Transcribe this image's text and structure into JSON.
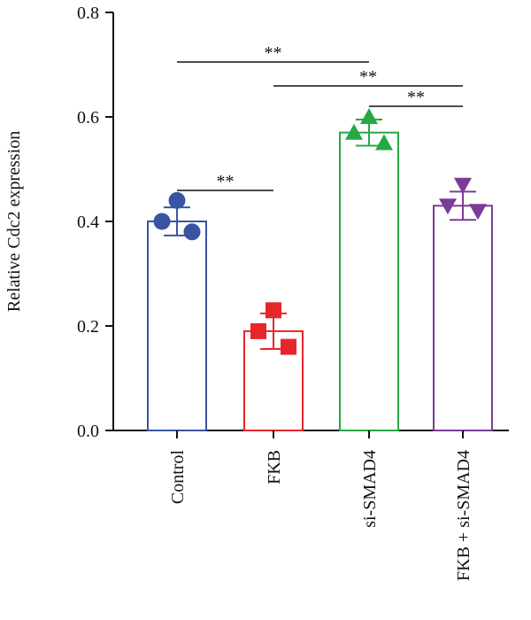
{
  "chart_data": {
    "type": "bar",
    "ylabel": "Relative Cdc2 expression",
    "xlabel": "",
    "ylim": [
      0,
      0.8
    ],
    "yticks": [
      0.0,
      0.2,
      0.4,
      0.6,
      0.8
    ],
    "ytick_labels": [
      "0.0",
      "0.2",
      "0.4",
      "0.6",
      "0.8"
    ],
    "categories": [
      "Control",
      "FKB",
      "si-SMAD4",
      "FKB + si-SMAD4"
    ],
    "bars": [
      {
        "category": "Control",
        "mean": 0.4,
        "sd": 0.027,
        "color": "#3a54a4",
        "marker": "circle",
        "points": [
          {
            "slot": 0,
            "y": 0.4
          },
          {
            "slot": 1,
            "y": 0.44
          },
          {
            "slot": 2,
            "y": 0.38
          }
        ]
      },
      {
        "category": "FKB",
        "mean": 0.19,
        "sd": 0.034,
        "color": "#e5262b",
        "marker": "square",
        "points": [
          {
            "slot": 0,
            "y": 0.19
          },
          {
            "slot": 1,
            "y": 0.23
          },
          {
            "slot": 2,
            "y": 0.16
          }
        ]
      },
      {
        "category": "si-SMAD4",
        "mean": 0.57,
        "sd": 0.025,
        "color": "#26a845",
        "marker": "triangle-up",
        "points": [
          {
            "slot": 0,
            "y": 0.57
          },
          {
            "slot": 1,
            "y": 0.6
          },
          {
            "slot": 2,
            "y": 0.55
          }
        ]
      },
      {
        "category": "FKB + si-SMAD4",
        "mean": 0.43,
        "sd": 0.027,
        "color": "#7b3b98",
        "marker": "triangle-down",
        "points": [
          {
            "slot": 0,
            "y": 0.43
          },
          {
            "slot": 1,
            "y": 0.47
          },
          {
            "slot": 2,
            "y": 0.42
          }
        ]
      }
    ],
    "significance": [
      {
        "from": "Control",
        "to": "FKB",
        "label": "**"
      },
      {
        "from": "Control",
        "to": "si-SMAD4",
        "label": "**"
      },
      {
        "from": "FKB",
        "to": "FKB + si-SMAD4",
        "label": "**"
      },
      {
        "from": "si-SMAD4",
        "to": "FKB + si-SMAD4",
        "label": "**"
      }
    ]
  }
}
